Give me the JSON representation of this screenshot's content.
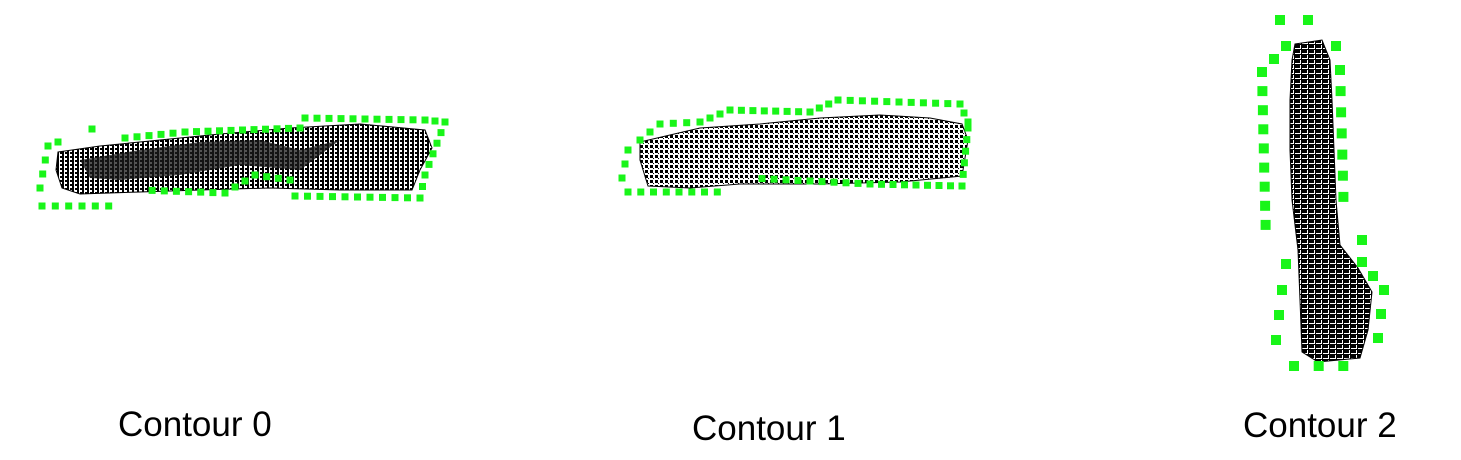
{
  "figure": {
    "contours": [
      {
        "id": 0,
        "label": "Contour 0"
      },
      {
        "id": 1,
        "label": "Contour 1"
      },
      {
        "id": 2,
        "label": "Contour 2"
      }
    ]
  },
  "colors": {
    "background": "#ffffff",
    "contour_points": "#19f519",
    "point_cloud": "#000000",
    "caption_text": "#000000"
  }
}
